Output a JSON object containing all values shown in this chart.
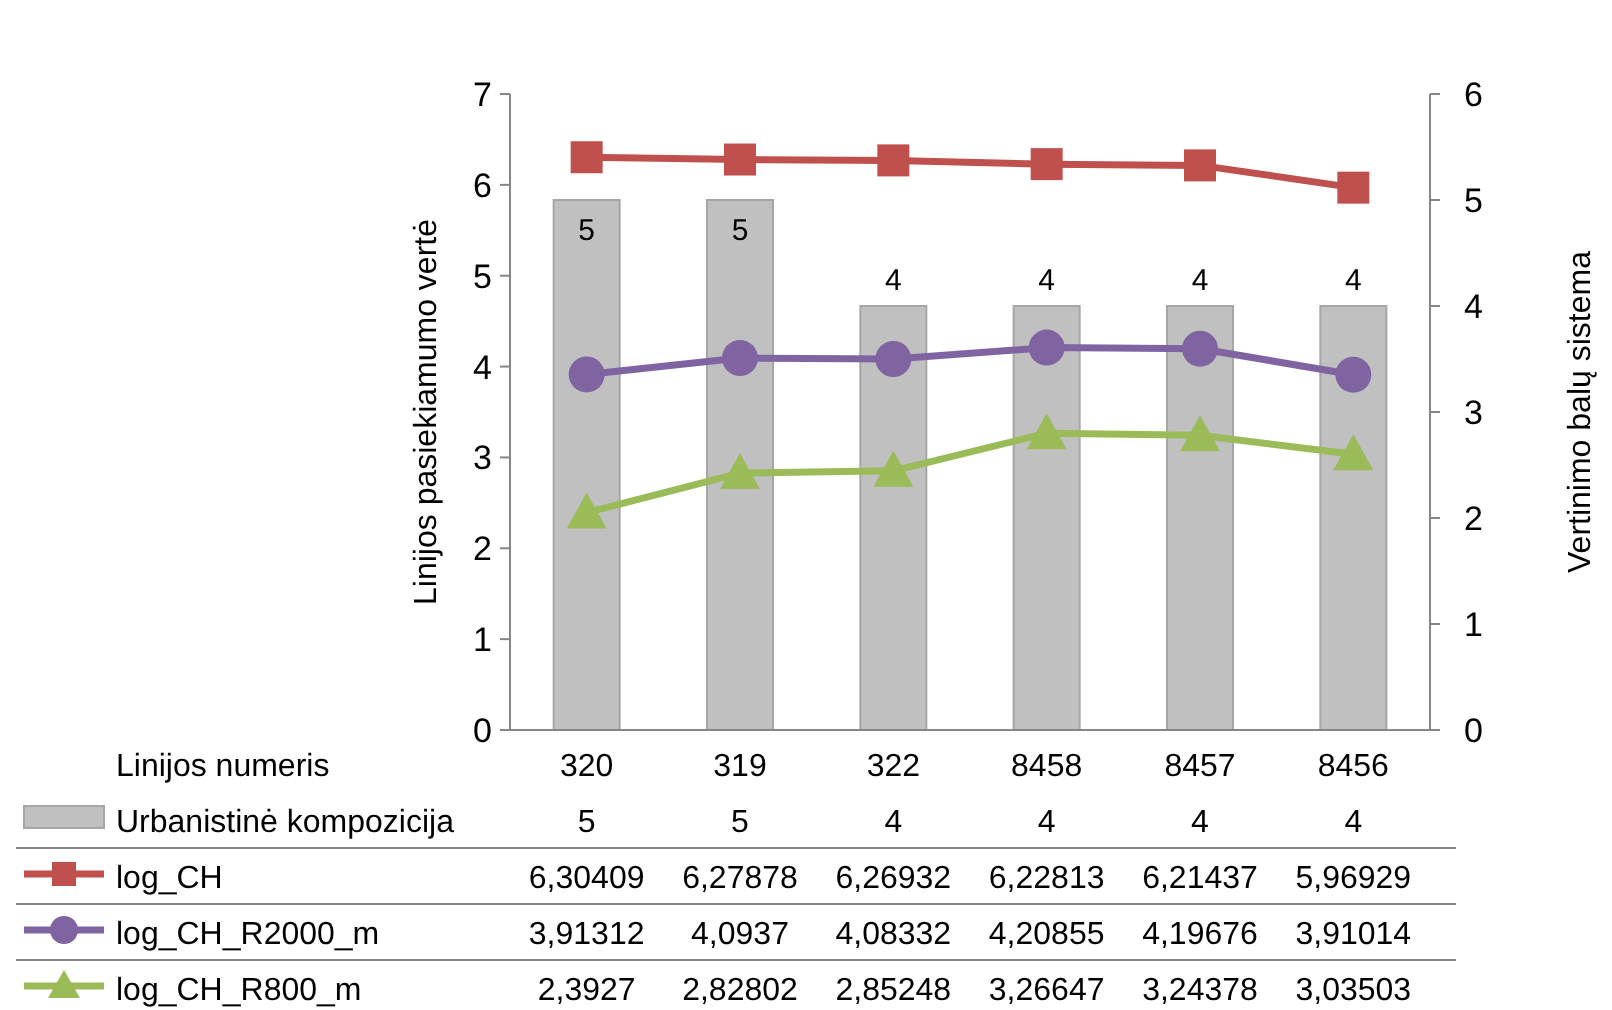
{
  "chart_data": {
    "type": "line",
    "xlabel": "Linijos numeris",
    "ylabel": "Linijos pasiekiamumo vertė",
    "y2label": "Vertinimo balų sistema",
    "categories": [
      "320",
      "319",
      "322",
      "8458",
      "8457",
      "8456"
    ],
    "series": [
      {
        "name": "Urbanistinė kompozicija",
        "type": "bar",
        "axis": "y2",
        "color": "#c0c0c0",
        "values": [
          5,
          5,
          4,
          4,
          4,
          4
        ],
        "value_labels": [
          "5",
          "5",
          "4",
          "4",
          "4",
          "4"
        ]
      },
      {
        "name": "log_CH",
        "color": "#c0504d",
        "marker": "square",
        "values": [
          6.30409,
          6.27878,
          6.26932,
          6.22813,
          6.21437,
          5.96929
        ],
        "value_labels": [
          "6,30409",
          "6,27878",
          "6,26932",
          "6,22813",
          "6,21437",
          "5,96929"
        ]
      },
      {
        "name": "log_CH_R2000_m",
        "color": "#8064a2",
        "marker": "circle",
        "values": [
          3.91312,
          4.0937,
          4.08332,
          4.20855,
          4.19676,
          3.91014
        ],
        "value_labels": [
          "3,91312",
          "4,0937",
          "4,08332",
          "4,20855",
          "4,19676",
          "3,91014"
        ]
      },
      {
        "name": "log_CH_R800_m",
        "color": "#9bbb59",
        "marker": "triangle",
        "values": [
          2.3927,
          2.82802,
          2.85248,
          3.26647,
          3.24378,
          3.03503
        ],
        "value_labels": [
          "2,3927",
          "2,82802",
          "2,85248",
          "3,26647",
          "3,24378",
          "3,03503"
        ]
      }
    ],
    "ylim": [
      0,
      7
    ],
    "yticks": [
      0,
      1,
      2,
      3,
      4,
      5,
      6,
      7
    ],
    "y2lim": [
      0,
      6
    ],
    "y2ticks": [
      0,
      1,
      2,
      3,
      4,
      5,
      6
    ],
    "grid": false,
    "legend": "bottom"
  }
}
